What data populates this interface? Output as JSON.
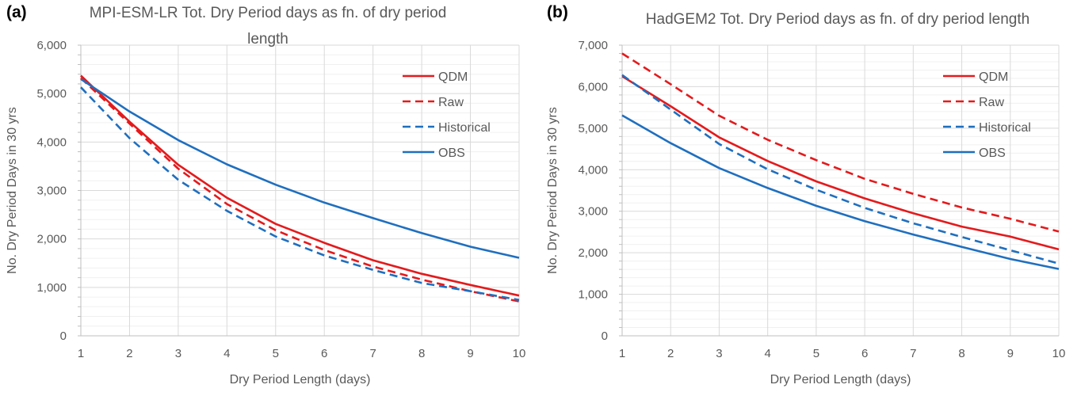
{
  "panels": [
    {
      "letter": "(a)"
    },
    {
      "letter": "(b)"
    }
  ],
  "chart_data": [
    {
      "type": "line",
      "title": "MPI-ESM-LR Tot. Dry Period days as fn. of dry period length",
      "xlabel": "Dry Period Length (days)",
      "ylabel": "No. Dry Period Days in 30 yrs",
      "x": [
        1,
        2,
        3,
        4,
        5,
        6,
        7,
        8,
        9,
        10
      ],
      "xlim": [
        1,
        10
      ],
      "ylim": [
        0,
        6000
      ],
      "y_ticks": [
        0,
        1000,
        2000,
        3000,
        4000,
        5000,
        6000
      ],
      "y_tick_labels": [
        "0",
        "1,000",
        "2,000",
        "3,000",
        "4,000",
        "5,000",
        "6,000"
      ],
      "grid": true,
      "legend_position": "top-right",
      "series": [
        {
          "name": "QDM",
          "color": "#e41a1c",
          "dash": "solid",
          "values": [
            5370,
            4420,
            3530,
            2850,
            2310,
            1920,
            1560,
            1280,
            1050,
            830
          ]
        },
        {
          "name": "Raw",
          "color": "#e41a1c",
          "dash": "dashed",
          "values": [
            5320,
            4380,
            3450,
            2720,
            2180,
            1770,
            1430,
            1160,
            920,
            710
          ]
        },
        {
          "name": "Historical",
          "color": "#1f6fbf",
          "dash": "dashed",
          "values": [
            5130,
            4080,
            3220,
            2580,
            2050,
            1660,
            1360,
            1090,
            920,
            740
          ]
        },
        {
          "name": "OBS",
          "color": "#1f6fbf",
          "dash": "solid",
          "values": [
            5300,
            4630,
            4040,
            3540,
            3120,
            2750,
            2430,
            2120,
            1840,
            1610
          ]
        }
      ]
    },
    {
      "type": "line",
      "title": "HadGEM2 Tot. Dry Period days as fn. of dry period length",
      "xlabel": "Dry Period Length (days)",
      "ylabel": "No. Dry Period Days in 30 yrs",
      "x": [
        1,
        2,
        3,
        4,
        5,
        6,
        7,
        8,
        9,
        10
      ],
      "xlim": [
        1,
        10
      ],
      "ylim": [
        0,
        7000
      ],
      "y_ticks": [
        0,
        1000,
        2000,
        3000,
        4000,
        5000,
        6000,
        7000
      ],
      "y_tick_labels": [
        "0",
        "1,000",
        "2,000",
        "3,000",
        "4,000",
        "5,000",
        "6,000",
        "7,000"
      ],
      "grid": true,
      "legend_position": "top-right",
      "series": [
        {
          "name": "QDM",
          "color": "#e41a1c",
          "dash": "solid",
          "values": [
            6250,
            5530,
            4780,
            4210,
            3720,
            3310,
            2950,
            2630,
            2390,
            2080
          ]
        },
        {
          "name": "Raw",
          "color": "#e41a1c",
          "dash": "dashed",
          "values": [
            6800,
            6060,
            5300,
            4720,
            4230,
            3780,
            3420,
            3090,
            2820,
            2510
          ]
        },
        {
          "name": "Historical",
          "color": "#1f6fbf",
          "dash": "dashed",
          "values": [
            6280,
            5450,
            4620,
            4010,
            3520,
            3080,
            2710,
            2380,
            2060,
            1740
          ]
        },
        {
          "name": "OBS",
          "color": "#1f6fbf",
          "dash": "solid",
          "values": [
            5310,
            4640,
            4040,
            3560,
            3130,
            2760,
            2440,
            2140,
            1850,
            1610
          ]
        }
      ]
    }
  ]
}
